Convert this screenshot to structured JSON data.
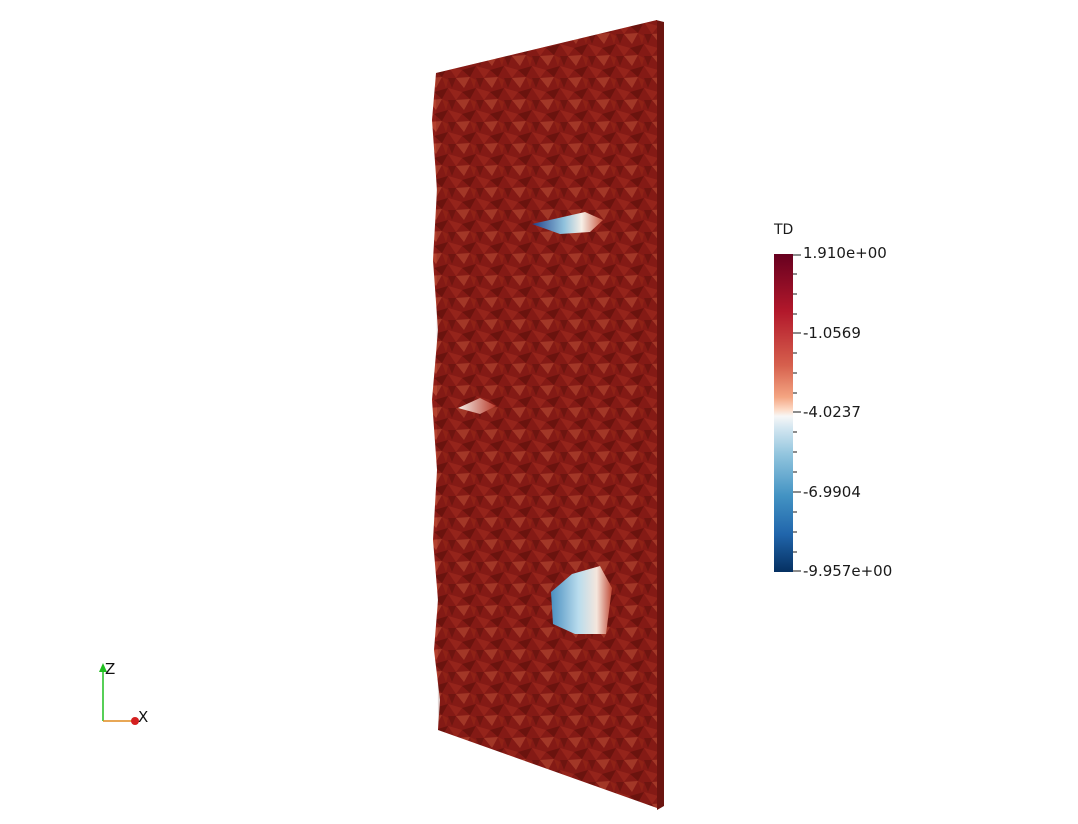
{
  "colorbar": {
    "title": "TD",
    "labels": [
      "1.910e+00",
      "-1.0569",
      "-4.0237",
      "-6.9904",
      "-9.957e+00"
    ],
    "colors": [
      "#67001f",
      "#b2182b",
      "#f7f7f7",
      "#2166ac",
      "#053061"
    ]
  },
  "axes": {
    "z_label": "Z",
    "x_label": "X"
  },
  "surface": {
    "base_color": "#8b1c17"
  }
}
